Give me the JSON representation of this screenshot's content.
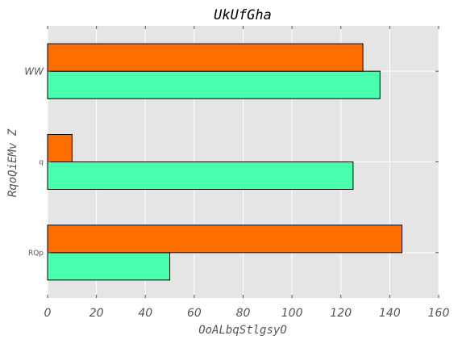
{
  "chart_data": {
    "type": "bar",
    "orientation": "horizontal",
    "title": "UkUfGha",
    "xlabel": "OoALbqStlgsyO",
    "ylabel": "RqoQiEMv Z",
    "categories": [
      "RQp",
      "q",
      "WW"
    ],
    "series": [
      {
        "color": "#47FFAD",
        "values": [
          50,
          125,
          136
        ]
      },
      {
        "color": "#FF6F00",
        "values": [
          145,
          10,
          129
        ]
      }
    ],
    "xlim": [
      0,
      160
    ],
    "xticks": [
      "0",
      "20",
      "40",
      "60",
      "80",
      "100",
      "120",
      "140",
      "160"
    ],
    "grid": true,
    "background": "#E5E5E5",
    "grid_color": "#FFFFFF"
  }
}
